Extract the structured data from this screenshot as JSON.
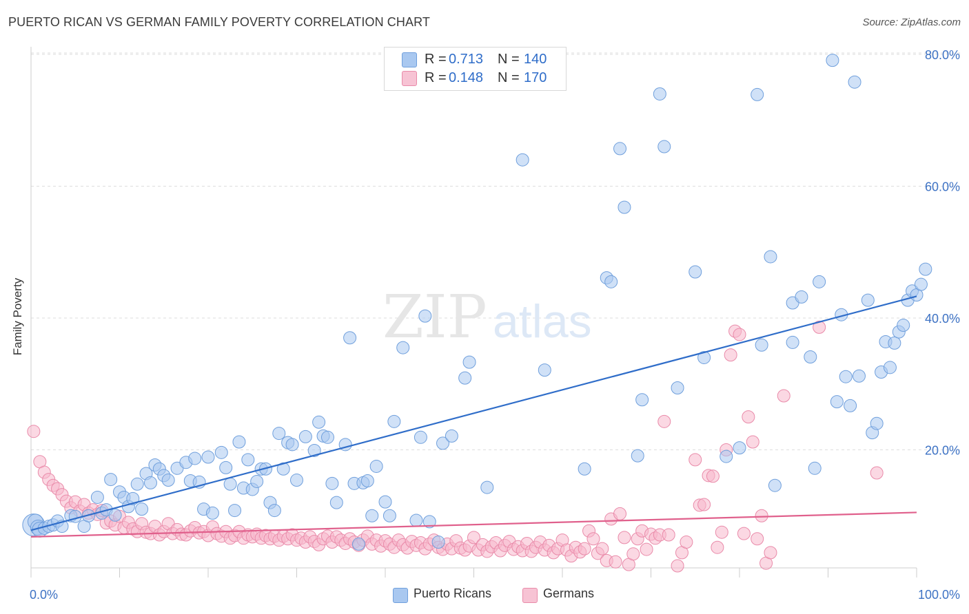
{
  "header": {
    "title": "PUERTO RICAN VS GERMAN FAMILY POVERTY CORRELATION CHART",
    "source": "Source: ZipAtlas.com"
  },
  "watermark": "ZIPatlas",
  "legend_top": {
    "rows": [
      {
        "r_label": "R =",
        "r_value": "0.713",
        "n_label": "N =",
        "n_value": "140"
      },
      {
        "r_label": "R =",
        "r_value": "0.148",
        "n_label": "N =",
        "n_value": "170"
      }
    ]
  },
  "legend_bottom": {
    "items": [
      "Puerto Ricans",
      "Germans"
    ]
  },
  "colors": {
    "blue_fill": "#a9c8f0",
    "blue_stroke": "#6f9fdc",
    "blue_line": "#2f6dc9",
    "pink_fill": "#f7b8cc",
    "pink_stroke": "#e98aa9",
    "pink_line": "#e0608c",
    "tick_text": "#3d72c4",
    "grid": "#dddddd"
  },
  "chart_data": {
    "type": "scatter",
    "title": "PUERTO RICAN VS GERMAN FAMILY POVERTY CORRELATION CHART",
    "xlabel": "",
    "ylabel": "Family Poverty",
    "xlim": [
      0,
      100
    ],
    "ylim": [
      0,
      80
    ],
    "x_tick_labels": [
      "0.0%",
      "100.0%"
    ],
    "y_ticks": [
      20,
      40,
      60,
      80
    ],
    "y_tick_labels": [
      "20.0%",
      "40.0%",
      "60.0%",
      "80.0%"
    ],
    "grid": true,
    "legend_position": "top-center",
    "series": [
      {
        "name": "Puerto Ricans",
        "color": "#a9c8f0",
        "R": 0.713,
        "N": 140,
        "trend": {
          "x": [
            0,
            100
          ],
          "y": [
            7.8,
            43.3
          ]
        },
        "points": [
          [
            0.3,
            8.6
          ],
          [
            0.5,
            9.1
          ],
          [
            0.8,
            8.2
          ],
          [
            1.0,
            7.9
          ],
          [
            1.5,
            8.1
          ],
          [
            2.0,
            8.4
          ],
          [
            2.5,
            8.6
          ],
          [
            3.0,
            9.2
          ],
          [
            3.5,
            8.4
          ],
          [
            4.5,
            10.0
          ],
          [
            5.0,
            9.9
          ],
          [
            6.0,
            8.4
          ],
          [
            6.5,
            10.0
          ],
          [
            7.5,
            12.8
          ],
          [
            8.0,
            10.4
          ],
          [
            8.5,
            10.9
          ],
          [
            9.0,
            15.5
          ],
          [
            9.5,
            10.1
          ],
          [
            10.0,
            13.6
          ],
          [
            10.5,
            12.8
          ],
          [
            11.0,
            11.4
          ],
          [
            11.5,
            12.6
          ],
          [
            12.0,
            14.8
          ],
          [
            12.5,
            11.0
          ],
          [
            13.0,
            16.4
          ],
          [
            13.5,
            15.0
          ],
          [
            14.0,
            17.7
          ],
          [
            14.5,
            17.1
          ],
          [
            15.0,
            16.1
          ],
          [
            15.5,
            15.4
          ],
          [
            16.5,
            17.2
          ],
          [
            17.5,
            18.1
          ],
          [
            18.0,
            15.3
          ],
          [
            18.5,
            18.7
          ],
          [
            19.0,
            15.1
          ],
          [
            19.5,
            11.0
          ],
          [
            20.0,
            18.9
          ],
          [
            20.5,
            10.4
          ],
          [
            21.5,
            19.6
          ],
          [
            22.0,
            17.3
          ],
          [
            22.5,
            14.8
          ],
          [
            23.0,
            10.8
          ],
          [
            23.5,
            21.2
          ],
          [
            24.0,
            14.2
          ],
          [
            24.5,
            18.5
          ],
          [
            25.0,
            14.0
          ],
          [
            25.5,
            15.2
          ],
          [
            26.0,
            17.1
          ],
          [
            26.5,
            17.1
          ],
          [
            27.0,
            12.0
          ],
          [
            27.5,
            10.8
          ],
          [
            28.0,
            22.5
          ],
          [
            28.5,
            17.1
          ],
          [
            29.0,
            21.1
          ],
          [
            29.5,
            20.8
          ],
          [
            30.0,
            15.4
          ],
          [
            31.0,
            22.0
          ],
          [
            32.0,
            19.9
          ],
          [
            32.5,
            24.2
          ],
          [
            33.0,
            22.1
          ],
          [
            33.5,
            21.9
          ],
          [
            34.0,
            14.9
          ],
          [
            34.5,
            12.0
          ],
          [
            35.5,
            20.8
          ],
          [
            36.0,
            37.0
          ],
          [
            36.5,
            14.9
          ],
          [
            37.0,
            5.7
          ],
          [
            37.5,
            15.0
          ],
          [
            38.0,
            15.3
          ],
          [
            38.5,
            10.0
          ],
          [
            39.0,
            17.5
          ],
          [
            40.0,
            12.1
          ],
          [
            40.5,
            10.0
          ],
          [
            41.0,
            24.3
          ],
          [
            42.0,
            35.5
          ],
          [
            43.5,
            9.3
          ],
          [
            44.0,
            21.9
          ],
          [
            44.5,
            40.3
          ],
          [
            45.0,
            9.1
          ],
          [
            46.0,
            6.0
          ],
          [
            46.5,
            21.0
          ],
          [
            47.5,
            22.1
          ],
          [
            49.5,
            33.3
          ],
          [
            49.0,
            30.9
          ],
          [
            51.5,
            14.3
          ],
          [
            55.5,
            64.0
          ],
          [
            58.0,
            32.1
          ],
          [
            62.5,
            17.1
          ],
          [
            65.0,
            46.1
          ],
          [
            65.5,
            45.5
          ],
          [
            66.5,
            65.7
          ],
          [
            67.0,
            56.8
          ],
          [
            68.5,
            19.1
          ],
          [
            69.0,
            27.6
          ],
          [
            71.0,
            74.0
          ],
          [
            71.5,
            66.0
          ],
          [
            73.0,
            29.4
          ],
          [
            75.0,
            47.0
          ],
          [
            76.0,
            34.0
          ],
          [
            78.5,
            19.0
          ],
          [
            80.0,
            20.3
          ],
          [
            82.0,
            73.9
          ],
          [
            82.5,
            35.9
          ],
          [
            83.5,
            49.3
          ],
          [
            84.0,
            14.6
          ],
          [
            86.0,
            42.3
          ],
          [
            86.0,
            36.3
          ],
          [
            87.0,
            43.2
          ],
          [
            88.0,
            34.1
          ],
          [
            88.5,
            17.2
          ],
          [
            89.0,
            45.5
          ],
          [
            90.5,
            79.1
          ],
          [
            91.5,
            40.5
          ],
          [
            91.0,
            27.3
          ],
          [
            92.0,
            31.1
          ],
          [
            92.5,
            26.7
          ],
          [
            93.0,
            75.8
          ],
          [
            93.5,
            31.2
          ],
          [
            94.5,
            42.7
          ],
          [
            95.0,
            22.6
          ],
          [
            95.5,
            24.0
          ],
          [
            96.0,
            31.8
          ],
          [
            96.5,
            36.4
          ],
          [
            97.0,
            32.5
          ],
          [
            97.5,
            36.2
          ],
          [
            98.0,
            37.9
          ],
          [
            98.5,
            38.9
          ],
          [
            99.0,
            42.7
          ],
          [
            99.5,
            44.1
          ],
          [
            100.0,
            43.5
          ],
          [
            100.5,
            45.1
          ],
          [
            101.0,
            47.4
          ]
        ]
      },
      {
        "name": "Germans",
        "color": "#f7b8cc",
        "R": 0.148,
        "N": 170,
        "trend": {
          "x": [
            0,
            100
          ],
          "y": [
            6.8,
            10.5
          ]
        },
        "points": [
          [
            0.3,
            22.8
          ],
          [
            1.0,
            18.2
          ],
          [
            1.5,
            16.6
          ],
          [
            2.0,
            15.5
          ],
          [
            2.5,
            14.6
          ],
          [
            3.0,
            14.1
          ],
          [
            3.5,
            13.2
          ],
          [
            4.0,
            12.2
          ],
          [
            4.5,
            11.2
          ],
          [
            5.0,
            12.1
          ],
          [
            5.5,
            10.7
          ],
          [
            6.0,
            11.7
          ],
          [
            6.5,
            10.4
          ],
          [
            7.0,
            10.9
          ],
          [
            7.5,
            10.2
          ],
          [
            8.0,
            10.8
          ],
          [
            8.5,
            8.9
          ],
          [
            9.0,
            9.2
          ],
          [
            9.5,
            8.6
          ],
          [
            10.0,
            9.9
          ],
          [
            10.5,
            8.2
          ],
          [
            11.0,
            9.0
          ],
          [
            11.5,
            8.0
          ],
          [
            12.0,
            7.6
          ],
          [
            12.5,
            8.8
          ],
          [
            13.0,
            7.5
          ],
          [
            13.5,
            7.3
          ],
          [
            14.0,
            8.4
          ],
          [
            14.5,
            7.1
          ],
          [
            15.0,
            7.6
          ],
          [
            15.5,
            8.8
          ],
          [
            16.0,
            7.3
          ],
          [
            16.5,
            7.9
          ],
          [
            17.0,
            7.2
          ],
          [
            17.5,
            7.1
          ],
          [
            18.0,
            7.7
          ],
          [
            18.5,
            8.2
          ],
          [
            19.0,
            7.4
          ],
          [
            19.5,
            7.6
          ],
          [
            20.0,
            7.0
          ],
          [
            20.5,
            8.3
          ],
          [
            21.0,
            7.3
          ],
          [
            21.5,
            6.9
          ],
          [
            22.0,
            7.6
          ],
          [
            22.5,
            6.6
          ],
          [
            23.0,
            7.0
          ],
          [
            23.5,
            7.6
          ],
          [
            24.0,
            6.6
          ],
          [
            24.5,
            7.1
          ],
          [
            25.0,
            6.8
          ],
          [
            25.5,
            7.2
          ],
          [
            26.0,
            6.6
          ],
          [
            26.5,
            7.0
          ],
          [
            27.0,
            6.5
          ],
          [
            27.5,
            6.9
          ],
          [
            28.0,
            6.3
          ],
          [
            28.5,
            6.9
          ],
          [
            29.0,
            6.5
          ],
          [
            29.5,
            7.1
          ],
          [
            30.0,
            6.3
          ],
          [
            30.5,
            6.6
          ],
          [
            31.0,
            6.0
          ],
          [
            31.5,
            6.8
          ],
          [
            32.0,
            6.1
          ],
          [
            32.5,
            5.6
          ],
          [
            33.0,
            6.5
          ],
          [
            33.5,
            6.9
          ],
          [
            34.0,
            6.0
          ],
          [
            34.5,
            6.8
          ],
          [
            35.0,
            6.3
          ],
          [
            35.5,
            5.8
          ],
          [
            36.0,
            6.5
          ],
          [
            36.5,
            6.0
          ],
          [
            37.0,
            5.5
          ],
          [
            37.5,
            6.3
          ],
          [
            38.0,
            6.9
          ],
          [
            38.5,
            5.7
          ],
          [
            39.0,
            6.3
          ],
          [
            39.5,
            5.4
          ],
          [
            40.0,
            6.2
          ],
          [
            40.5,
            5.7
          ],
          [
            41.0,
            5.2
          ],
          [
            41.5,
            6.3
          ],
          [
            42.0,
            5.6
          ],
          [
            42.5,
            5.1
          ],
          [
            43.0,
            6.1
          ],
          [
            43.5,
            5.5
          ],
          [
            44.0,
            5.9
          ],
          [
            44.5,
            5.0
          ],
          [
            45.0,
            5.7
          ],
          [
            45.5,
            6.3
          ],
          [
            46.0,
            5.2
          ],
          [
            46.5,
            4.9
          ],
          [
            47.0,
            5.7
          ],
          [
            47.5,
            5.0
          ],
          [
            48.0,
            6.2
          ],
          [
            48.5,
            5.1
          ],
          [
            49.0,
            4.8
          ],
          [
            49.5,
            5.4
          ],
          [
            50.0,
            6.7
          ],
          [
            50.5,
            4.8
          ],
          [
            51.0,
            5.6
          ],
          [
            51.5,
            4.6
          ],
          [
            52.0,
            5.3
          ],
          [
            52.5,
            5.9
          ],
          [
            53.0,
            4.7
          ],
          [
            53.5,
            5.5
          ],
          [
            54.0,
            6.1
          ],
          [
            54.5,
            4.9
          ],
          [
            55.0,
            5.3
          ],
          [
            55.5,
            4.7
          ],
          [
            56.0,
            5.8
          ],
          [
            56.5,
            4.6
          ],
          [
            57.0,
            5.2
          ],
          [
            57.5,
            6.0
          ],
          [
            58.0,
            4.8
          ],
          [
            58.5,
            5.5
          ],
          [
            59.0,
            4.4
          ],
          [
            59.5,
            5.0
          ],
          [
            60.0,
            6.3
          ],
          [
            60.5,
            4.8
          ],
          [
            61.0,
            3.9
          ],
          [
            61.5,
            5.2
          ],
          [
            62.0,
            4.5
          ],
          [
            62.5,
            5.0
          ],
          [
            63.0,
            7.7
          ],
          [
            63.5,
            6.5
          ],
          [
            64.0,
            4.3
          ],
          [
            64.5,
            5.0
          ],
          [
            65.0,
            3.2
          ],
          [
            65.5,
            9.5
          ],
          [
            66.0,
            3.0
          ],
          [
            66.5,
            10.3
          ],
          [
            67.0,
            6.7
          ],
          [
            67.5,
            2.6
          ],
          [
            68.0,
            4.2
          ],
          [
            68.5,
            6.5
          ],
          [
            69.0,
            7.7
          ],
          [
            69.5,
            4.9
          ],
          [
            70.0,
            7.2
          ],
          [
            70.5,
            6.6
          ],
          [
            71.0,
            7.1
          ],
          [
            71.5,
            24.3
          ],
          [
            72.0,
            7.1
          ],
          [
            73.0,
            2.4
          ],
          [
            73.5,
            4.4
          ],
          [
            74.0,
            6.0
          ],
          [
            75.0,
            18.5
          ],
          [
            75.5,
            11.6
          ],
          [
            76.0,
            11.7
          ],
          [
            76.5,
            16.1
          ],
          [
            77.0,
            16.0
          ],
          [
            77.5,
            5.2
          ],
          [
            78.0,
            7.5
          ],
          [
            78.5,
            20.0
          ],
          [
            79.0,
            34.4
          ],
          [
            79.5,
            38.0
          ],
          [
            80.0,
            37.5
          ],
          [
            80.5,
            7.3
          ],
          [
            81.0,
            25.0
          ],
          [
            81.5,
            21.2
          ],
          [
            82.0,
            6.5
          ],
          [
            82.5,
            10.0
          ],
          [
            83.0,
            2.8
          ],
          [
            83.5,
            4.4
          ],
          [
            85.0,
            28.2
          ],
          [
            89.0,
            38.6
          ],
          [
            95.5,
            16.5
          ]
        ]
      }
    ]
  }
}
